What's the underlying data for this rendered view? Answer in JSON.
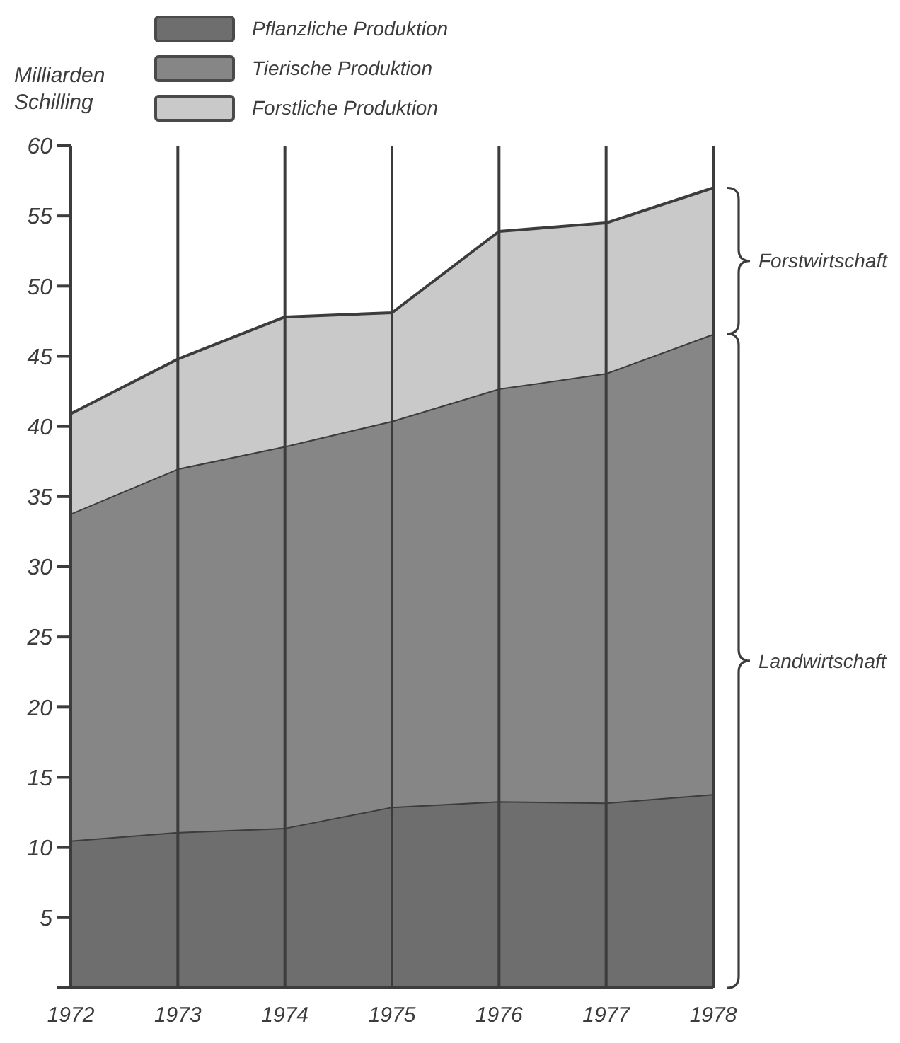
{
  "chart_data": {
    "type": "area",
    "stacked": true,
    "ylabel": "Milliarden Schilling",
    "categories": [
      "1972",
      "1973",
      "1974",
      "1975",
      "1976",
      "1977",
      "1978"
    ],
    "series": [
      {
        "name": "Pflanzliche Produktion",
        "color": "#6e6e6e",
        "values": [
          10.5,
          11.1,
          11.4,
          12.9,
          13.3,
          13.2,
          13.8
        ]
      },
      {
        "name": "Tierische Produktion",
        "color": "#868686",
        "values": [
          23.3,
          25.9,
          27.2,
          27.5,
          29.4,
          30.6,
          32.8
        ]
      },
      {
        "name": "Forstliche Produktion",
        "color": "#c9c9c9",
        "values": [
          7.1,
          7.8,
          9.2,
          7.7,
          11.2,
          10.7,
          10.4
        ]
      }
    ],
    "ylim": [
      0,
      60
    ],
    "yticks": [
      5,
      10,
      15,
      20,
      25,
      30,
      35,
      40,
      45,
      50,
      55,
      60
    ],
    "grid": "x",
    "legend": "top",
    "annotations": [
      "Forstwirtschaft",
      "Landwirtschaft"
    ]
  }
}
